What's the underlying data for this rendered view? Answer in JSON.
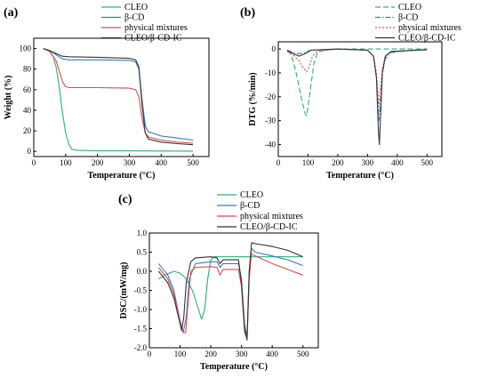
{
  "panels": [
    {
      "id": "a",
      "panel_label": "(a)",
      "chart_data": {
        "type": "line",
        "xlabel": "Temperature (°C)",
        "ylabel": "Weight (%)",
        "xlim": [
          0,
          550
        ],
        "ylim": [
          -5,
          110
        ],
        "xticks": [
          0,
          100,
          200,
          300,
          400,
          500
        ],
        "yticks": [
          0,
          20,
          40,
          60,
          80,
          100
        ],
        "grid": false,
        "legend_position": "top-right",
        "series": [
          {
            "name": "CLEO",
            "color": "#2ab07a",
            "dash": "solid",
            "points": [
              [
                30,
                100
              ],
              [
                40,
                99
              ],
              [
                50,
                97
              ],
              [
                60,
                93
              ],
              [
                70,
                82
              ],
              [
                80,
                62
              ],
              [
                90,
                38
              ],
              [
                100,
                18
              ],
              [
                110,
                7
              ],
              [
                120,
                2
              ],
              [
                140,
                1
              ],
              [
                200,
                0.5
              ],
              [
                300,
                0.5
              ],
              [
                400,
                0.4
              ],
              [
                500,
                0.3
              ]
            ]
          },
          {
            "name": "β-CD",
            "color": "#3b78c4",
            "dash": "solid",
            "points": [
              [
                30,
                100
              ],
              [
                50,
                98
              ],
              [
                70,
                94
              ],
              [
                90,
                90
              ],
              [
                110,
                89
              ],
              [
                200,
                89
              ],
              [
                300,
                88.5
              ],
              [
                320,
                87
              ],
              [
                330,
                80
              ],
              [
                340,
                50
              ],
              [
                350,
                25
              ],
              [
                360,
                19
              ],
              [
                400,
                15
              ],
              [
                450,
                13
              ],
              [
                500,
                11
              ]
            ]
          },
          {
            "name": "physical mixtures",
            "color": "#e04a4a",
            "dash": "solid",
            "points": [
              [
                30,
                100
              ],
              [
                50,
                97
              ],
              [
                70,
                88
              ],
              [
                80,
                78
              ],
              [
                90,
                68
              ],
              [
                100,
                63
              ],
              [
                110,
                62
              ],
              [
                200,
                62
              ],
              [
                300,
                61.5
              ],
              [
                320,
                60
              ],
              [
                330,
                53
              ],
              [
                340,
                32
              ],
              [
                350,
                18
              ],
              [
                360,
                14
              ],
              [
                400,
                11
              ],
              [
                450,
                9
              ],
              [
                500,
                8
              ]
            ]
          },
          {
            "name": "CLEO/β-CD-IC",
            "color": "#333333",
            "dash": "solid",
            "points": [
              [
                30,
                100
              ],
              [
                50,
                98
              ],
              [
                70,
                95
              ],
              [
                90,
                92.5
              ],
              [
                110,
                92
              ],
              [
                200,
                91.5
              ],
              [
                300,
                90.5
              ],
              [
                320,
                89
              ],
              [
                330,
                82
              ],
              [
                340,
                45
              ],
              [
                350,
                18
              ],
              [
                360,
                12
              ],
              [
                400,
                9
              ],
              [
                450,
                7.5
              ],
              [
                500,
                6.5
              ]
            ]
          }
        ]
      }
    },
    {
      "id": "b",
      "panel_label": "(b)",
      "chart_data": {
        "type": "line",
        "xlabel": "Temperature (°C)",
        "ylabel": "DTG (%/min)",
        "xlim": [
          0,
          550
        ],
        "ylim": [
          -45,
          3
        ],
        "xticks": [
          0,
          100,
          200,
          300,
          400,
          500
        ],
        "yticks": [
          0,
          -10,
          -20,
          -30,
          -40
        ],
        "grid": false,
        "legend_position": "top-right",
        "series": [
          {
            "name": "CLEO",
            "color": "#2ab07a",
            "dash": "6,3",
            "points": [
              [
                30,
                -0.5
              ],
              [
                40,
                -2
              ],
              [
                50,
                -5
              ],
              [
                60,
                -10
              ],
              [
                70,
                -16
              ],
              [
                80,
                -22
              ],
              [
                90,
                -27
              ],
              [
                95,
                -28
              ],
              [
                100,
                -24
              ],
              [
                110,
                -15
              ],
              [
                120,
                -6
              ],
              [
                130,
                -2
              ],
              [
                150,
                -0.5
              ],
              [
                200,
                0
              ],
              [
                300,
                0
              ],
              [
                500,
                0
              ]
            ]
          },
          {
            "name": "β-CD",
            "color": "#3b78c4",
            "dash": "6,2,1.5,2",
            "points": [
              [
                30,
                -0.5
              ],
              [
                50,
                -1.5
              ],
              [
                70,
                -2
              ],
              [
                90,
                -1.5
              ],
              [
                110,
                -0.5
              ],
              [
                200,
                0
              ],
              [
                300,
                -0.5
              ],
              [
                320,
                -3
              ],
              [
                330,
                -12
              ],
              [
                338,
                -30
              ],
              [
                345,
                -20
              ],
              [
                350,
                -10
              ],
              [
                360,
                -4
              ],
              [
                380,
                -1.5
              ],
              [
                450,
                -0.5
              ],
              [
                500,
                -0.3
              ]
            ]
          },
          {
            "name": "physical mixtures",
            "color": "#e04a4a",
            "dash": "2,2",
            "points": [
              [
                30,
                -1
              ],
              [
                50,
                -2.5
              ],
              [
                70,
                -5
              ],
              [
                85,
                -8
              ],
              [
                95,
                -9.5
              ],
              [
                105,
                -7
              ],
              [
                115,
                -3
              ],
              [
                130,
                -1
              ],
              [
                200,
                0
              ],
              [
                300,
                -0.5
              ],
              [
                320,
                -3
              ],
              [
                330,
                -10
              ],
              [
                338,
                -24
              ],
              [
                345,
                -15
              ],
              [
                350,
                -8
              ],
              [
                360,
                -3
              ],
              [
                380,
                -1
              ],
              [
                500,
                -0.3
              ]
            ]
          },
          {
            "name": "CLEO/β-CD-IC",
            "color": "#333333",
            "dash": "solid",
            "points": [
              [
                30,
                -0.5
              ],
              [
                50,
                -2
              ],
              [
                70,
                -3
              ],
              [
                90,
                -2
              ],
              [
                110,
                -0.5
              ],
              [
                200,
                0
              ],
              [
                300,
                -0.5
              ],
              [
                320,
                -3
              ],
              [
                330,
                -12
              ],
              [
                337,
                -35
              ],
              [
                340,
                -40
              ],
              [
                345,
                -25
              ],
              [
                350,
                -10
              ],
              [
                360,
                -3
              ],
              [
                380,
                -1
              ],
              [
                500,
                -0.3
              ]
            ]
          }
        ]
      }
    },
    {
      "id": "c",
      "panel_label": "(c)",
      "chart_data": {
        "type": "line",
        "xlabel": "Temperature (°C)",
        "ylabel": "DSC/(mW/mg)",
        "xlim": [
          0,
          550
        ],
        "ylim": [
          -2.0,
          1.0
        ],
        "xticks": [
          0,
          100,
          200,
          300,
          400,
          500
        ],
        "yticks": [
          1.0,
          0.5,
          0.0,
          -0.5,
          -1.0,
          -1.5,
          -2.0
        ],
        "grid": false,
        "legend_position": "top",
        "series": [
          {
            "name": "CLEO",
            "color": "#2ab07a",
            "dash": "solid",
            "points": [
              [
                30,
                -0.2
              ],
              [
                50,
                -0.1
              ],
              [
                80,
                0.0
              ],
              [
                100,
                -0.05
              ],
              [
                120,
                -0.2
              ],
              [
                140,
                -0.5
              ],
              [
                160,
                -1.0
              ],
              [
                170,
                -1.25
              ],
              [
                180,
                -1.0
              ],
              [
                190,
                -0.2
              ],
              [
                200,
                0.3
              ],
              [
                210,
                0.38
              ],
              [
                250,
                0.38
              ],
              [
                300,
                0.38
              ],
              [
                400,
                0.38
              ],
              [
                500,
                0.38
              ]
            ]
          },
          {
            "name": "β-CD",
            "color": "#3b78c4",
            "dash": "solid",
            "points": [
              [
                30,
                0.2
              ],
              [
                40,
                0.1
              ],
              [
                60,
                -0.1
              ],
              [
                80,
                -0.5
              ],
              [
                100,
                -1.3
              ],
              [
                110,
                -1.6
              ],
              [
                120,
                -1.2
              ],
              [
                130,
                -0.2
              ],
              [
                150,
                0.2
              ],
              [
                200,
                0.25
              ],
              [
                220,
                0.25
              ],
              [
                230,
                0.1
              ],
              [
                240,
                0.2
              ],
              [
                290,
                0.2
              ],
              [
                300,
                -0.2
              ],
              [
                310,
                -1.4
              ],
              [
                318,
                -1.7
              ],
              [
                325,
                0.0
              ],
              [
                332,
                0.6
              ],
              [
                345,
                0.5
              ],
              [
                400,
                0.4
              ],
              [
                450,
                0.3
              ],
              [
                500,
                0.15
              ]
            ]
          },
          {
            "name": "physical mixtures",
            "color": "#e04a4a",
            "dash": "solid",
            "points": [
              [
                30,
                0.1
              ],
              [
                40,
                0.0
              ],
              [
                60,
                -0.2
              ],
              [
                80,
                -0.6
              ],
              [
                100,
                -1.3
              ],
              [
                110,
                -1.6
              ],
              [
                118,
                -1.6
              ],
              [
                125,
                -0.9
              ],
              [
                135,
                0.0
              ],
              [
                150,
                0.1
              ],
              [
                200,
                0.12
              ],
              [
                220,
                0.1
              ],
              [
                230,
                -0.1
              ],
              [
                240,
                0.05
              ],
              [
                290,
                0.05
              ],
              [
                300,
                -0.4
              ],
              [
                310,
                -1.6
              ],
              [
                318,
                -1.75
              ],
              [
                325,
                -0.2
              ],
              [
                332,
                0.45
              ],
              [
                345,
                0.4
              ],
              [
                400,
                0.2
              ],
              [
                450,
                0.05
              ],
              [
                500,
                -0.1
              ]
            ]
          },
          {
            "name": "CLEO/β-CD-IC",
            "color": "#333333",
            "dash": "solid",
            "points": [
              [
                30,
                0.0
              ],
              [
                40,
                -0.1
              ],
              [
                60,
                -0.3
              ],
              [
                80,
                -0.7
              ],
              [
                95,
                -1.2
              ],
              [
                105,
                -1.55
              ],
              [
                112,
                -1.2
              ],
              [
                120,
                -0.3
              ],
              [
                135,
                0.25
              ],
              [
                150,
                0.35
              ],
              [
                200,
                0.38
              ],
              [
                220,
                0.35
              ],
              [
                230,
                0.2
              ],
              [
                240,
                0.3
              ],
              [
                290,
                0.3
              ],
              [
                300,
                -0.3
              ],
              [
                310,
                -1.5
              ],
              [
                318,
                -1.8
              ],
              [
                325,
                0.0
              ],
              [
                333,
                0.75
              ],
              [
                345,
                0.72
              ],
              [
                400,
                0.65
              ],
              [
                450,
                0.55
              ],
              [
                500,
                0.38
              ]
            ]
          }
        ]
      }
    }
  ]
}
